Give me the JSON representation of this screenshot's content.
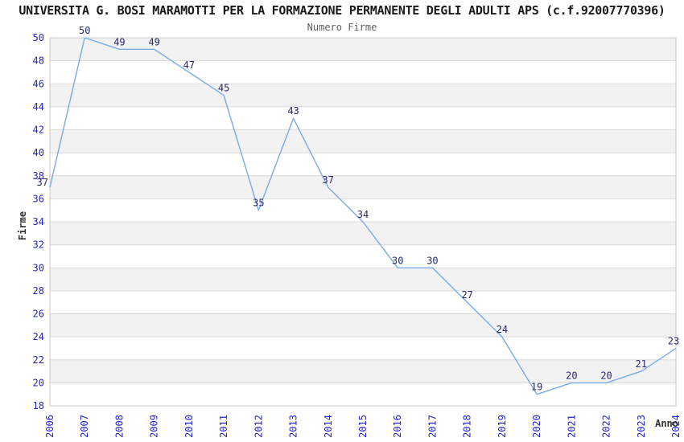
{
  "chart_data": {
    "type": "line",
    "title": "UNIVERSITA G. BOSI MARAMOTTI PER LA FORMAZIONE PERMANENTE DEGLI ADULTI APS (c.f.92007770396)",
    "subtitle": "Numero Firme",
    "xlabel": "Anno",
    "ylabel": "Firme",
    "x": [
      2006,
      2007,
      2008,
      2009,
      2010,
      2011,
      2012,
      2013,
      2014,
      2015,
      2016,
      2017,
      2018,
      2019,
      2020,
      2021,
      2022,
      2023,
      2024
    ],
    "values": [
      37,
      50,
      49,
      49,
      47,
      45,
      35,
      43,
      37,
      34,
      30,
      30,
      27,
      24,
      19,
      20,
      20,
      21,
      23
    ],
    "ylim": [
      18,
      50
    ],
    "ytick_step": 2,
    "grid": "horizontal-lines-with-alternating-bands",
    "legend_position": "none",
    "point_labels_visible": true,
    "colors": {
      "line": "#76ace6",
      "axis_tick_label": "#2222cc",
      "point_label": "#28286e",
      "band_fill": "#f2f2f2",
      "gridline": "#d9d9d9",
      "plot_border": "#c8c8c8",
      "axis_name": "#333333",
      "background": "#ffffff"
    }
  }
}
